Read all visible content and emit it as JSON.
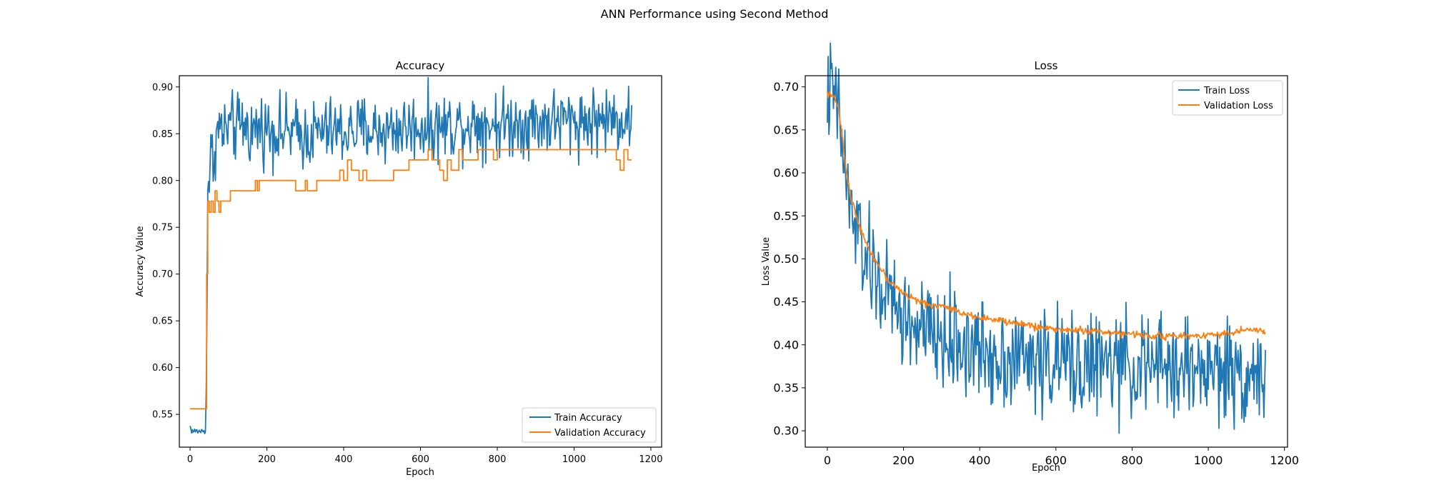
{
  "figure_title": "ANN Performance using Second Method",
  "chart_data": [
    {
      "type": "line",
      "title": "Accuracy",
      "xlabel": "Epoch",
      "ylabel": "Accuracy Value",
      "xlim": [
        -28,
        1228
      ],
      "ylim": [
        0.515,
        0.912
      ],
      "xticks": [
        0,
        200,
        400,
        600,
        800,
        1000,
        1200
      ],
      "yticks": [
        0.55,
        0.6,
        0.65,
        0.7,
        0.75,
        0.8,
        0.85,
        0.9
      ],
      "legend": "lower right",
      "grid": false,
      "series": [
        {
          "name": "Train Accuracy",
          "color": "#1f77b4",
          "x": [
            0,
            5,
            40,
            43,
            46,
            48,
            50,
            55,
            60,
            65,
            70,
            80,
            90,
            100,
            120,
            140,
            160,
            180,
            200,
            250,
            300,
            350,
            400,
            450,
            500,
            550,
            600,
            650,
            700,
            750,
            800,
            850,
            900,
            950,
            1000,
            1050,
            1100,
            1150
          ],
          "y": [
            0.537,
            0.532,
            0.532,
            0.6,
            0.78,
            0.815,
            0.8,
            0.83,
            0.82,
            0.84,
            0.85,
            0.857,
            0.85,
            0.858,
            0.855,
            0.86,
            0.852,
            0.857,
            0.855,
            0.852,
            0.848,
            0.853,
            0.852,
            0.855,
            0.853,
            0.856,
            0.858,
            0.857,
            0.86,
            0.862,
            0.861,
            0.862,
            0.862,
            0.864,
            0.864,
            0.864,
            0.866,
            0.866
          ],
          "noise": 0.018
        },
        {
          "name": "Validation Accuracy",
          "color": "#ff7f0e",
          "x": [
            0,
            42,
            43,
            46,
            50,
            55,
            60,
            65,
            70,
            75,
            80,
            85,
            100,
            105,
            160,
            170,
            175,
            180,
            200,
            210,
            270,
            275,
            300,
            305,
            320,
            330,
            350,
            380,
            390,
            400,
            410,
            420,
            440,
            450,
            460,
            470,
            480,
            520,
            530,
            560,
            570,
            600,
            610,
            620,
            630,
            640,
            650,
            660,
            670,
            680,
            700,
            710,
            740,
            750,
            780,
            790,
            800,
            1100,
            1110,
            1120,
            1130,
            1140,
            1150
          ],
          "y": [
            0.556,
            0.556,
            0.7,
            0.778,
            0.766,
            0.778,
            0.766,
            0.789,
            0.778,
            0.766,
            0.778,
            0.778,
            0.778,
            0.789,
            0.789,
            0.8,
            0.789,
            0.8,
            0.8,
            0.8,
            0.8,
            0.789,
            0.8,
            0.789,
            0.789,
            0.8,
            0.8,
            0.8,
            0.811,
            0.8,
            0.822,
            0.811,
            0.8,
            0.811,
            0.8,
            0.8,
            0.8,
            0.8,
            0.811,
            0.811,
            0.822,
            0.822,
            0.822,
            0.833,
            0.822,
            0.822,
            0.811,
            0.8,
            0.822,
            0.811,
            0.833,
            0.822,
            0.822,
            0.833,
            0.833,
            0.822,
            0.833,
            0.833,
            0.822,
            0.811,
            0.833,
            0.822,
            0.822
          ]
        }
      ]
    },
    {
      "type": "line",
      "title": "Loss",
      "xlabel": "Epoch",
      "ylabel": "Loss Value",
      "xlim": [
        -58,
        1208
      ],
      "ylim": [
        0.281,
        0.713
      ],
      "xticks": [
        0,
        200,
        400,
        600,
        800,
        1000,
        1200
      ],
      "yticks": [
        0.3,
        0.35,
        0.4,
        0.45,
        0.5,
        0.55,
        0.6,
        0.65,
        0.7
      ],
      "legend": "upper right",
      "grid": false,
      "series": [
        {
          "name": "Train Loss",
          "color": "#1f77b4",
          "x": [
            0,
            10,
            20,
            30,
            40,
            50,
            60,
            80,
            100,
            130,
            160,
            200,
            250,
            300,
            350,
            400,
            450,
            500,
            550,
            600,
            650,
            700,
            750,
            800,
            850,
            900,
            950,
            1000,
            1050,
            1100,
            1150
          ],
          "y": [
            0.693,
            0.692,
            0.686,
            0.665,
            0.63,
            0.59,
            0.555,
            0.53,
            0.5,
            0.475,
            0.455,
            0.43,
            0.415,
            0.405,
            0.4,
            0.392,
            0.388,
            0.385,
            0.382,
            0.38,
            0.378,
            0.377,
            0.376,
            0.375,
            0.374,
            0.373,
            0.372,
            0.372,
            0.37,
            0.368,
            0.365
          ],
          "noise": 0.03
        },
        {
          "name": "Validation Loss",
          "color": "#ff7f0e",
          "x": [
            0,
            10,
            20,
            30,
            40,
            50,
            60,
            80,
            100,
            130,
            160,
            200,
            250,
            300,
            350,
            400,
            450,
            500,
            550,
            600,
            650,
            700,
            750,
            800,
            850,
            900,
            950,
            1000,
            1050,
            1100,
            1150
          ],
          "y": [
            0.693,
            0.692,
            0.688,
            0.67,
            0.64,
            0.6,
            0.575,
            0.545,
            0.52,
            0.495,
            0.475,
            0.46,
            0.448,
            0.445,
            0.438,
            0.432,
            0.428,
            0.425,
            0.421,
            0.418,
            0.417,
            0.416,
            0.414,
            0.412,
            0.411,
            0.41,
            0.41,
            0.412,
            0.413,
            0.418,
            0.415
          ],
          "noise": 0.002
        }
      ]
    }
  ]
}
